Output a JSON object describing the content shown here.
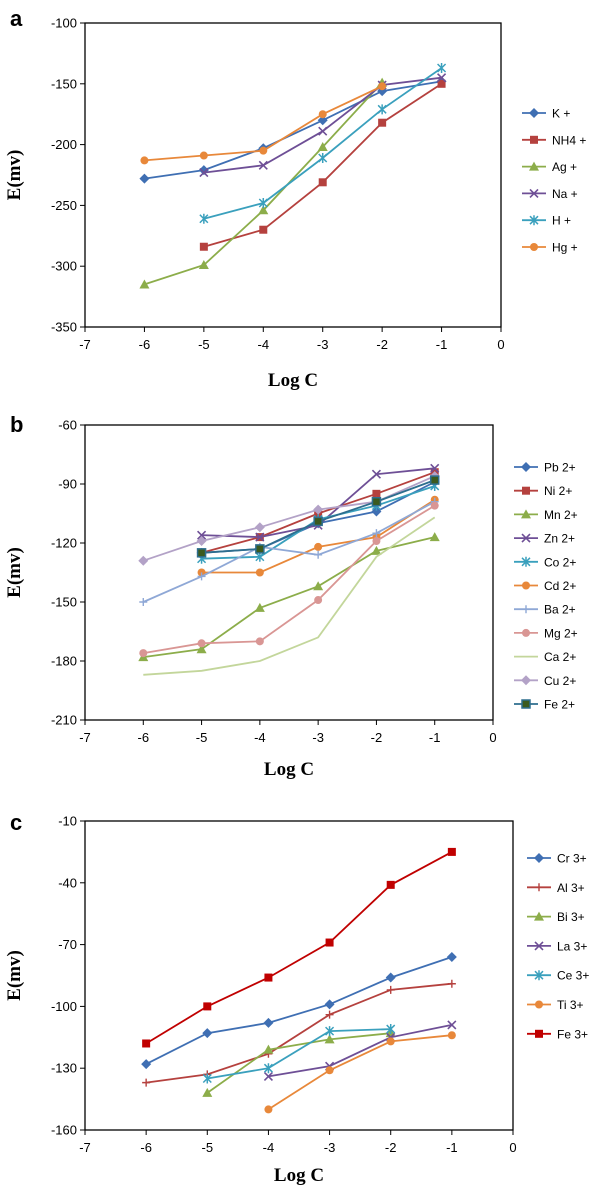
{
  "chart_data": [
    {
      "panel": "a",
      "type": "line",
      "xlabel": "Log C",
      "ylabel": "E(mv)",
      "xlim": [
        -7,
        0
      ],
      "ylim": [
        -350,
        -100
      ],
      "xticks": [
        -7,
        -6,
        -5,
        -4,
        -3,
        -2,
        -1,
        0
      ],
      "yticks": [
        -100,
        -150,
        -200,
        -250,
        -300,
        -350
      ],
      "legend_position": "right",
      "grid": false,
      "series": [
        {
          "name": "K +",
          "color": "#3f6fb3",
          "marker": "diamond",
          "x": [
            -6,
            -5,
            -4,
            -3,
            -2,
            -1
          ],
          "y": [
            -228,
            -221,
            -203,
            -180,
            -156,
            -148
          ]
        },
        {
          "name": "NH4 +",
          "color": "#b5413e",
          "marker": "square",
          "x": [
            -5,
            -4,
            -3,
            -2,
            -1
          ],
          "y": [
            -284,
            -270,
            -231,
            -182,
            -150
          ]
        },
        {
          "name": "Ag +",
          "color": "#8cad4a",
          "marker": "triangle",
          "x": [
            -6,
            -5,
            -4,
            -3,
            -2
          ],
          "y": [
            -315,
            -299,
            -254,
            -202,
            -149
          ]
        },
        {
          "name": "Na +",
          "color": "#6e4f96",
          "marker": "x",
          "x": [
            -5,
            -4,
            -3,
            -2,
            -1
          ],
          "y": [
            -223,
            -217,
            -189,
            -151,
            -145
          ]
        },
        {
          "name": "H +",
          "color": "#3aa0bd",
          "marker": "star",
          "x": [
            -5,
            -4,
            -3,
            -2,
            -1
          ],
          "y": [
            -261,
            -248,
            -211,
            -171,
            -137
          ]
        },
        {
          "name": "Hg +",
          "color": "#e8883a",
          "marker": "circle",
          "x": [
            -6,
            -5,
            -4,
            -3,
            -2
          ],
          "y": [
            -213,
            -209,
            -205,
            -175,
            -152
          ]
        }
      ]
    },
    {
      "panel": "b",
      "type": "line",
      "xlabel": "Log C",
      "ylabel": "E(mv)",
      "xlim": [
        -7,
        0
      ],
      "ylim": [
        -210,
        -60
      ],
      "xticks": [
        -7,
        -6,
        -5,
        -4,
        -3,
        -2,
        -1,
        0
      ],
      "yticks": [
        -60,
        -90,
        -120,
        -150,
        -180,
        -210
      ],
      "legend_position": "right",
      "grid": false,
      "series": [
        {
          "name": "Pb 2+",
          "color": "#3f6fb3",
          "marker": "diamond",
          "x": [
            -5,
            -4,
            -3,
            -2,
            -1
          ],
          "y": [
            -125,
            -123,
            -110,
            -104,
            -89
          ]
        },
        {
          "name": "Ni 2+",
          "color": "#b5413e",
          "marker": "square",
          "x": [
            -5,
            -4,
            -3,
            -2,
            -1
          ],
          "y": [
            -125,
            -117,
            -105,
            -95,
            -84
          ]
        },
        {
          "name": "Mn 2+",
          "color": "#8cad4a",
          "marker": "triangle",
          "x": [
            -6,
            -5,
            -4,
            -3,
            -2,
            -1
          ],
          "y": [
            -178,
            -174,
            -153,
            -142,
            -124,
            -117
          ]
        },
        {
          "name": "Zn 2+",
          "color": "#6e4f96",
          "marker": "x",
          "x": [
            -5,
            -4,
            -3,
            -2,
            -1
          ],
          "y": [
            -116,
            -117,
            -111,
            -85,
            -82
          ]
        },
        {
          "name": "Co 2+",
          "color": "#3aa0bd",
          "marker": "star",
          "x": [
            -5,
            -4,
            -3,
            -2,
            -1
          ],
          "y": [
            -128,
            -127,
            -108,
            -101,
            -91
          ]
        },
        {
          "name": "Cd 2+",
          "color": "#e8883a",
          "marker": "circle",
          "x": [
            -5,
            -4,
            -3,
            -2,
            -1
          ],
          "y": [
            -135,
            -135,
            -122,
            -117,
            -98
          ]
        },
        {
          "name": "Ba 2+",
          "color": "#8fa8d6",
          "marker": "plus",
          "x": [
            -6,
            -5,
            -4,
            -3,
            -2,
            -1
          ],
          "y": [
            -150,
            -137,
            -122,
            -126,
            -115,
            -99
          ]
        },
        {
          "name": "Mg 2+",
          "color": "#d99694",
          "marker": "circle",
          "x": [
            -6,
            -5,
            -4,
            -3,
            -2,
            -1
          ],
          "y": [
            -176,
            -171,
            -170,
            -149,
            -119,
            -101
          ]
        },
        {
          "name": "Ca 2+",
          "color": "#c3d69b",
          "marker": "none",
          "x": [
            -6,
            -5,
            -4,
            -3,
            -2,
            -1
          ],
          "y": [
            -187,
            -185,
            -180,
            -168,
            -127,
            -107
          ]
        },
        {
          "name": "Cu 2+",
          "color": "#b3a2c7",
          "marker": "diamond",
          "x": [
            -6,
            -5,
            -4,
            -3,
            -2,
            -1
          ],
          "y": [
            -129,
            -119,
            -112,
            -103,
            -99,
            -86
          ]
        },
        {
          "name": "Fe 2+",
          "color": "#2e6e8e",
          "marker": "square-dark",
          "x": [
            -5,
            -4,
            -3,
            -2,
            -1
          ],
          "y": [
            -125,
            -123,
            -109,
            -99,
            -88
          ]
        }
      ]
    },
    {
      "panel": "c",
      "type": "line",
      "xlabel": "Log C",
      "ylabel": "E(mv)",
      "xlim": [
        -7,
        0
      ],
      "ylim": [
        -160,
        -10
      ],
      "xticks": [
        -7,
        -6,
        -5,
        -4,
        -3,
        -2,
        -1,
        0
      ],
      "yticks": [
        -10,
        -40,
        -70,
        -100,
        -130,
        -160
      ],
      "legend_position": "right",
      "grid": false,
      "series": [
        {
          "name": "Cr 3+",
          "color": "#3f6fb3",
          "marker": "diamond",
          "x": [
            -6,
            -5,
            -4,
            -3,
            -2,
            -1
          ],
          "y": [
            -128,
            -113,
            -108,
            -99,
            -86,
            -76
          ]
        },
        {
          "name": "Al 3+",
          "color": "#b5413e",
          "marker": "plus",
          "x": [
            -6,
            -5,
            -4,
            -3,
            -2,
            -1
          ],
          "y": [
            -137,
            -133,
            -123,
            -104,
            -92,
            -89
          ]
        },
        {
          "name": "Bi 3+",
          "color": "#8cad4a",
          "marker": "triangle",
          "x": [
            -5,
            -4,
            -3,
            -2
          ],
          "y": [
            -142,
            -121,
            -116,
            -113
          ]
        },
        {
          "name": "La 3+",
          "color": "#6e4f96",
          "marker": "x",
          "x": [
            -4,
            -3,
            -2,
            -1
          ],
          "y": [
            -134,
            -129,
            -115,
            -109
          ]
        },
        {
          "name": "Ce 3+",
          "color": "#3aa0bd",
          "marker": "star",
          "x": [
            -5,
            -4,
            -3,
            -2
          ],
          "y": [
            -135,
            -130,
            -112,
            -111
          ]
        },
        {
          "name": "Ti 3+",
          "color": "#e8883a",
          "marker": "circle",
          "x": [
            -4,
            -3,
            -2,
            -1
          ],
          "y": [
            -150,
            -131,
            -117,
            -114
          ]
        },
        {
          "name": "Fe 3+",
          "color": "#c00000",
          "marker": "square",
          "x": [
            -6,
            -5,
            -4,
            -3,
            -2,
            -1
          ],
          "y": [
            -118,
            -100,
            -86,
            -69,
            -41,
            -25
          ]
        }
      ]
    }
  ]
}
